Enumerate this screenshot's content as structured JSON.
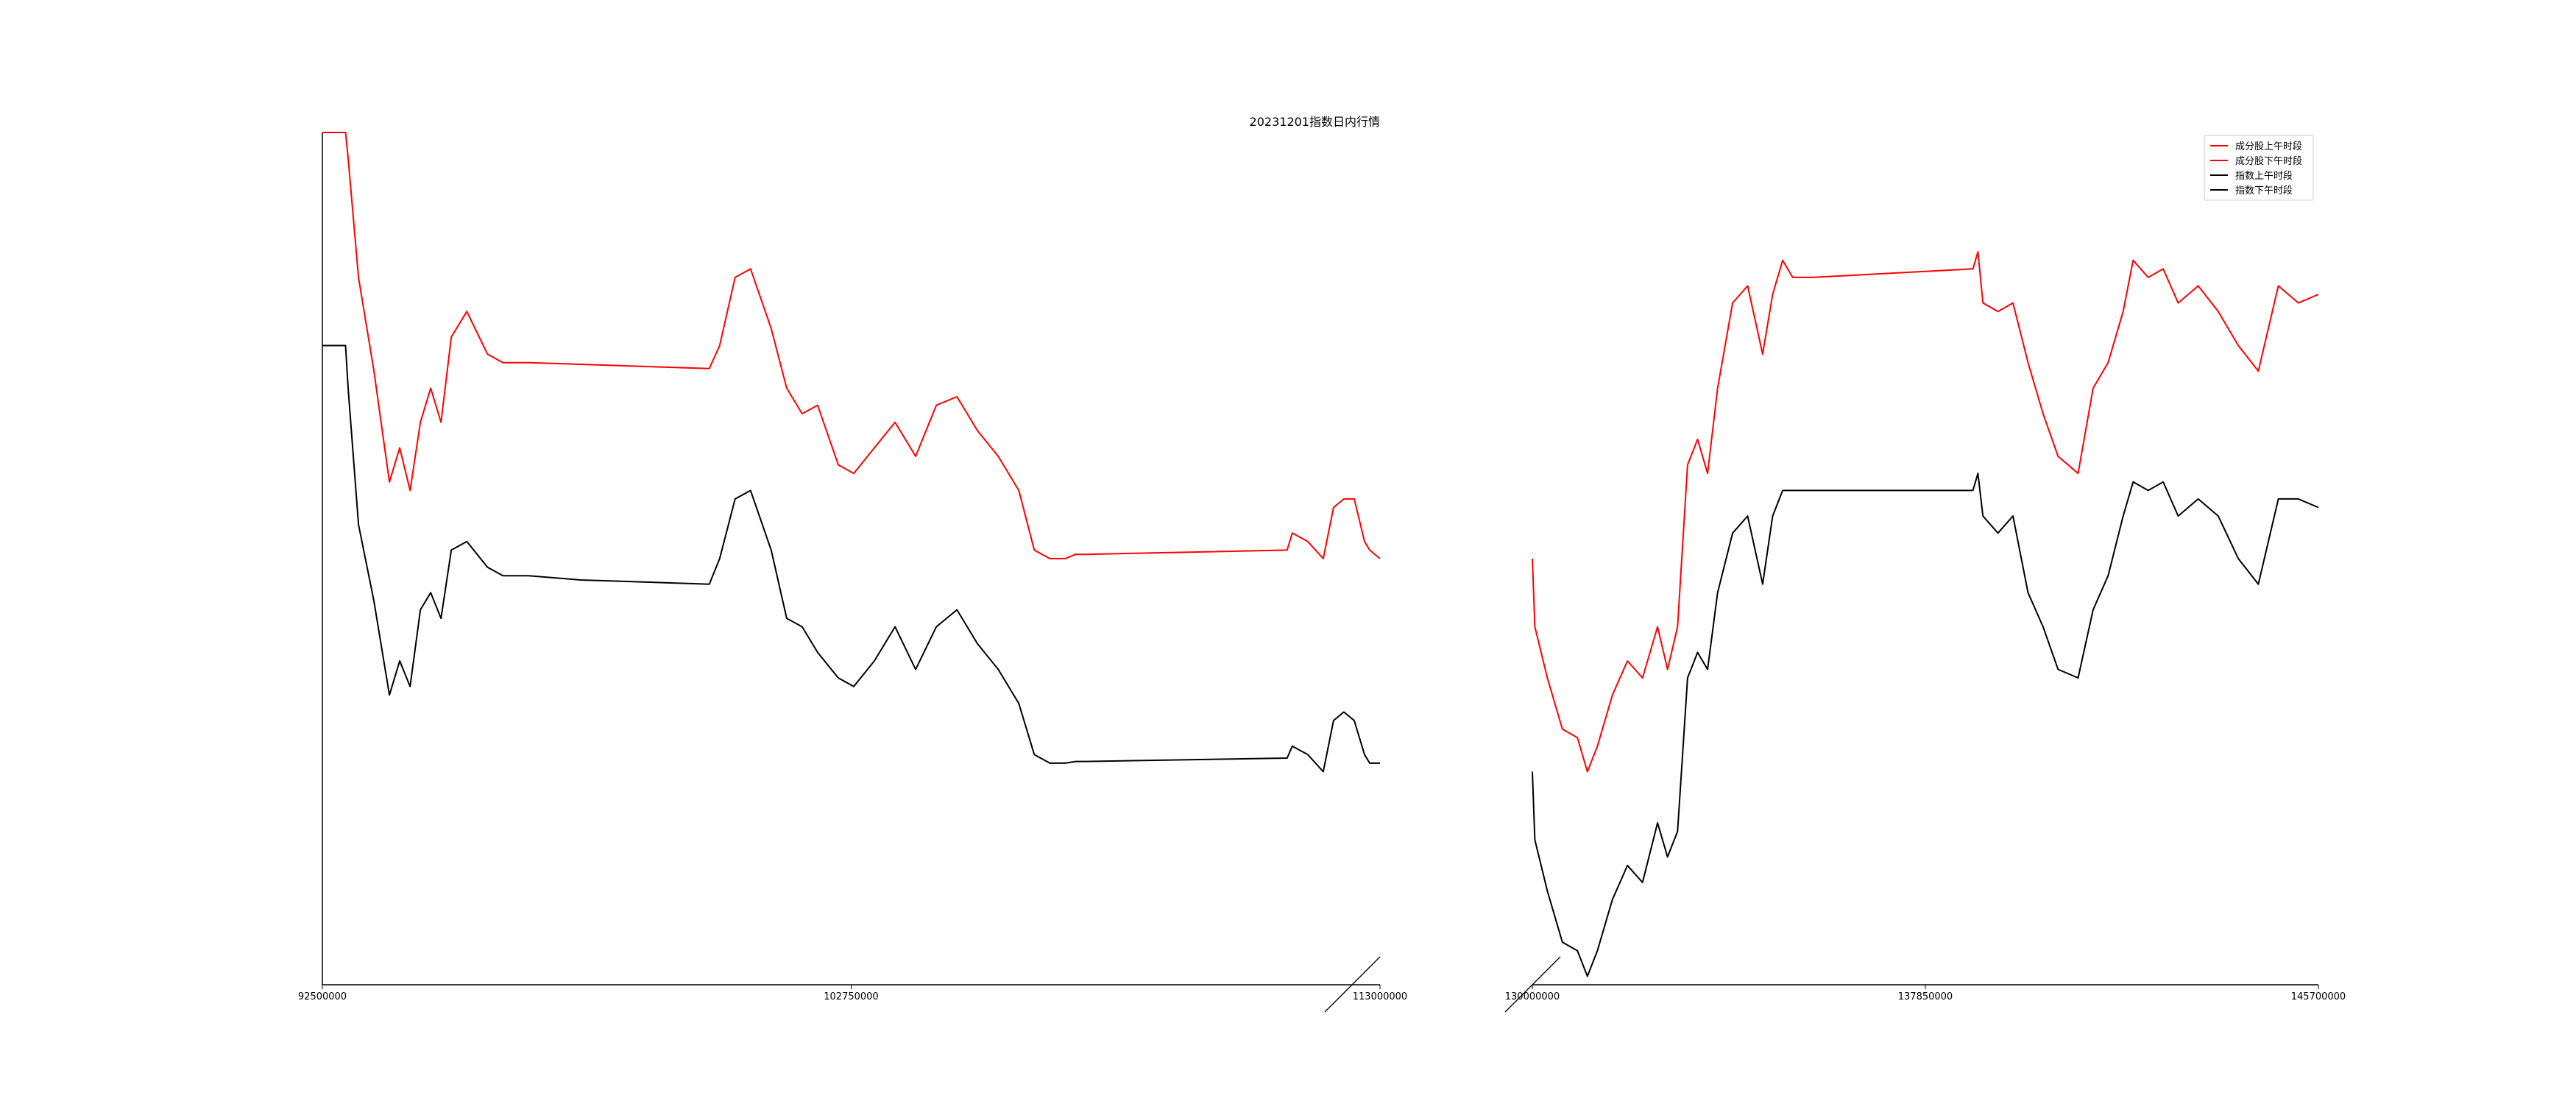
{
  "chart_data": [
    {
      "type": "line",
      "panel": "morning",
      "title": "20231201指数日内行情",
      "xlabel": "",
      "ylabel": "",
      "xlim": [
        92500000,
        113000000
      ],
      "ylim": [
        0,
        1
      ],
      "x_ticks": [
        {
          "value": 92500000,
          "label": "92500000"
        },
        {
          "value": 102750000,
          "label": "102750000"
        },
        {
          "value": 113000000,
          "label": "113000000"
        }
      ],
      "grid": false,
      "series": [
        {
          "name": "成分股上午时段",
          "color": "#ff0000",
          "x": [
            92500000,
            92950000,
            93000000,
            93200000,
            93500000,
            93800000,
            94000000,
            94200000,
            94400000,
            94600000,
            94800000,
            95000000,
            95300000,
            95700000,
            96000000,
            96500000,
            97500000,
            100000000,
            100200000,
            100500000,
            100800000,
            101200000,
            101500000,
            101800000,
            102100000,
            102500000,
            102800000,
            103200000,
            103600000,
            104000000,
            104400000,
            104800000,
            105200000,
            105600000,
            106000000,
            106300000,
            106600000,
            106900000,
            107100000,
            107300000,
            111200000,
            111300000,
            111600000,
            111900000,
            112100000,
            112300000,
            112500000,
            112700000,
            112800000,
            113000000
          ],
          "values": [
            1.0,
            1.0,
            0.97,
            0.83,
            0.72,
            0.59,
            0.63,
            0.58,
            0.66,
            0.7,
            0.66,
            0.76,
            0.79,
            0.74,
            0.73,
            0.73,
            0.728,
            0.723,
            0.75,
            0.83,
            0.84,
            0.77,
            0.7,
            0.67,
            0.68,
            0.61,
            0.6,
            0.63,
            0.66,
            0.62,
            0.68,
            0.69,
            0.65,
            0.62,
            0.58,
            0.51,
            0.5,
            0.5,
            0.505,
            0.505,
            0.51,
            0.53,
            0.52,
            0.5,
            0.56,
            0.57,
            0.57,
            0.52,
            0.51,
            0.5
          ]
        },
        {
          "name": "指数上午时段",
          "color": "#000000",
          "x": [
            92500000,
            92950000,
            93000000,
            93200000,
            93500000,
            93800000,
            94000000,
            94200000,
            94400000,
            94600000,
            94800000,
            95000000,
            95300000,
            95700000,
            96000000,
            96500000,
            97500000,
            100000000,
            100200000,
            100500000,
            100800000,
            101200000,
            101500000,
            101800000,
            102100000,
            102500000,
            102800000,
            103200000,
            103600000,
            104000000,
            104400000,
            104800000,
            105200000,
            105600000,
            106000000,
            106300000,
            106600000,
            106900000,
            107100000,
            107300000,
            111200000,
            111300000,
            111600000,
            111900000,
            112100000,
            112300000,
            112500000,
            112700000,
            112800000,
            113000000
          ],
          "values": [
            0.75,
            0.75,
            0.7,
            0.54,
            0.45,
            0.34,
            0.38,
            0.35,
            0.44,
            0.46,
            0.43,
            0.51,
            0.52,
            0.49,
            0.48,
            0.48,
            0.475,
            0.47,
            0.5,
            0.57,
            0.58,
            0.51,
            0.43,
            0.42,
            0.39,
            0.36,
            0.35,
            0.38,
            0.42,
            0.37,
            0.42,
            0.44,
            0.4,
            0.37,
            0.33,
            0.27,
            0.26,
            0.26,
            0.262,
            0.262,
            0.266,
            0.28,
            0.27,
            0.25,
            0.31,
            0.32,
            0.31,
            0.27,
            0.26,
            0.26
          ]
        }
      ]
    },
    {
      "type": "line",
      "panel": "afternoon",
      "title": "",
      "xlabel": "",
      "ylabel": "",
      "xlim": [
        130000000,
        145700000
      ],
      "ylim": [
        0,
        1
      ],
      "x_ticks": [
        {
          "value": 130000000,
          "label": "130000000"
        },
        {
          "value": 137850000,
          "label": "137850000"
        },
        {
          "value": 145700000,
          "label": "145700000"
        }
      ],
      "grid": false,
      "legend": {
        "position": "top-right",
        "entries": [
          {
            "label": "成分股上午时段",
            "color": "#ff0000"
          },
          {
            "label": "成分股下午时段",
            "color": "#ff0000"
          },
          {
            "label": "指数上午时段",
            "color": "#000000"
          },
          {
            "label": "指数下午时段",
            "color": "#000000"
          }
        ]
      },
      "series": [
        {
          "name": "成分股下午时段",
          "color": "#ff0000",
          "x": [
            130000000,
            130050000,
            130300000,
            130600000,
            130900000,
            131100000,
            131300000,
            131600000,
            131900000,
            132200000,
            132500000,
            132700000,
            132900000,
            133100000,
            133300000,
            133500000,
            133700000,
            134000000,
            134300000,
            134600000,
            134800000,
            135000000,
            135200000,
            135400000,
            135600000,
            138800000,
            138900000,
            139000000,
            139300000,
            139600000,
            139900000,
            140200000,
            140500000,
            140900000,
            141200000,
            141500000,
            141800000,
            142000000,
            142300000,
            142600000,
            142900000,
            143300000,
            143700000,
            144100000,
            144500000,
            144900000,
            145300000,
            145700000
          ],
          "values": [
            0.5,
            0.42,
            0.36,
            0.3,
            0.29,
            0.25,
            0.28,
            0.34,
            0.38,
            0.36,
            0.42,
            0.37,
            0.42,
            0.61,
            0.64,
            0.6,
            0.7,
            0.8,
            0.82,
            0.74,
            0.81,
            0.85,
            0.83,
            0.83,
            0.83,
            0.84,
            0.86,
            0.8,
            0.79,
            0.8,
            0.73,
            0.67,
            0.62,
            0.6,
            0.7,
            0.73,
            0.79,
            0.85,
            0.83,
            0.84,
            0.8,
            0.82,
            0.79,
            0.75,
            0.72,
            0.82,
            0.8,
            0.81
          ]
        },
        {
          "name": "指数下午时段",
          "color": "#000000",
          "x": [
            130000000,
            130050000,
            130300000,
            130600000,
            130900000,
            131100000,
            131300000,
            131600000,
            131900000,
            132200000,
            132500000,
            132700000,
            132900000,
            133100000,
            133300000,
            133500000,
            133700000,
            134000000,
            134300000,
            134600000,
            134800000,
            135000000,
            135200000,
            135400000,
            135600000,
            138800000,
            138900000,
            139000000,
            139300000,
            139600000,
            139900000,
            140200000,
            140500000,
            140900000,
            141200000,
            141500000,
            141800000,
            142000000,
            142300000,
            142600000,
            142900000,
            143300000,
            143700000,
            144100000,
            144500000,
            144900000,
            145300000,
            145700000
          ],
          "values": [
            0.25,
            0.17,
            0.11,
            0.05,
            0.04,
            0.01,
            0.04,
            0.1,
            0.14,
            0.12,
            0.19,
            0.15,
            0.18,
            0.36,
            0.39,
            0.37,
            0.46,
            0.53,
            0.55,
            0.47,
            0.55,
            0.58,
            0.58,
            0.58,
            0.58,
            0.58,
            0.6,
            0.55,
            0.53,
            0.55,
            0.46,
            0.42,
            0.37,
            0.36,
            0.44,
            0.48,
            0.55,
            0.59,
            0.58,
            0.59,
            0.55,
            0.57,
            0.55,
            0.5,
            0.47,
            0.57,
            0.57,
            0.56
          ]
        }
      ]
    }
  ]
}
